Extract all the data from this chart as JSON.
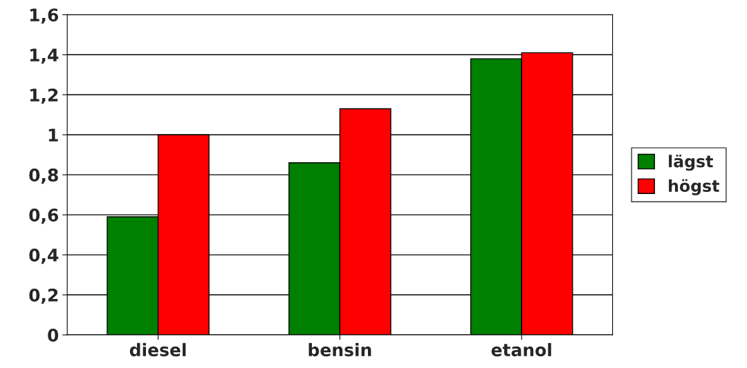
{
  "chart_data": {
    "type": "bar",
    "categories": [
      "diesel",
      "bensin",
      "etanol"
    ],
    "series": [
      {
        "name": "lägst",
        "color": "#008000",
        "values": [
          0.59,
          0.86,
          1.38
        ]
      },
      {
        "name": "högst",
        "color": "#ff0000",
        "values": [
          1.0,
          1.13,
          1.41
        ]
      }
    ],
    "ylim": [
      0,
      1.6
    ],
    "yticks": [
      {
        "value": 0,
        "label": "0"
      },
      {
        "value": 0.2,
        "label": "0,2"
      },
      {
        "value": 0.4,
        "label": "0,4"
      },
      {
        "value": 0.6,
        "label": "0,6"
      },
      {
        "value": 0.8,
        "label": "0,8"
      },
      {
        "value": 1,
        "label": "1"
      },
      {
        "value": 1.2,
        "label": "1,2"
      },
      {
        "value": 1.4,
        "label": "1,4"
      },
      {
        "value": 1.6,
        "label": "1,6"
      }
    ],
    "grid": "y",
    "legend": "right"
  }
}
